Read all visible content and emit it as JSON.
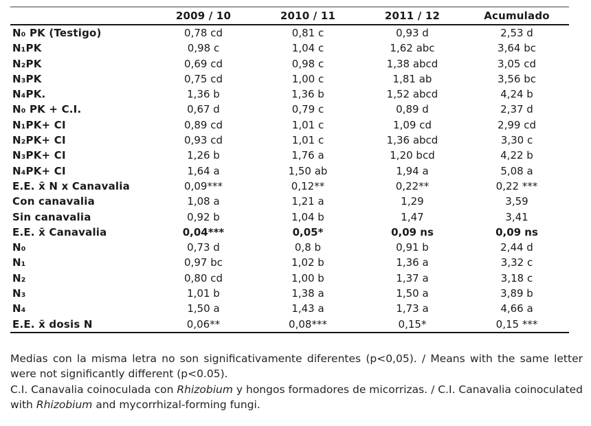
{
  "page": {
    "background": "#ffffff",
    "text_color": "#1a1a1a",
    "top_rule_color": "#9b9b9b",
    "rule_color": "#141414"
  },
  "table": {
    "columns": [
      "",
      "2009 / 10",
      "2010 / 11",
      "2011 / 12",
      "Acumulado"
    ],
    "rows": [
      {
        "label": "N₀ PK (Testigo)",
        "values": [
          "0,78 cd",
          "0,81 c",
          "0,93 d",
          "2,53 d"
        ],
        "bold_values": false
      },
      {
        "label": "N₁PK",
        "values": [
          "0,98 c",
          "1,04 c",
          "1,62 abc",
          "3,64 bc"
        ],
        "bold_values": false
      },
      {
        "label": "N₂PK",
        "values": [
          "0,69 cd",
          "0,98 c",
          "1,38 abcd",
          "3,05 cd"
        ],
        "bold_values": false
      },
      {
        "label": "N₃PK",
        "values": [
          "0,75 cd",
          "1,00 c",
          "1,81 ab",
          "3,56 bc"
        ],
        "bold_values": false
      },
      {
        "label": "N₄PK.",
        "values": [
          "1,36 b",
          "1,36 b",
          "1,52 abcd",
          "4,24 b"
        ],
        "bold_values": false
      },
      {
        "label": "N₀ PK + C.I.",
        "values": [
          "0,67 d",
          "0,79 c",
          "0,89 d",
          "2,37 d"
        ],
        "bold_values": false
      },
      {
        "label": "N₁PK+ CI",
        "values": [
          "0,89 cd",
          "1,01 c",
          "1,09 cd",
          "2,99 cd"
        ],
        "bold_values": false
      },
      {
        "label": "N₂PK+ CI",
        "values": [
          "0,93 cd",
          "1,01 c",
          "1,36 abcd",
          "3,30 c"
        ],
        "bold_values": false
      },
      {
        "label": "N₃PK+ CI",
        "values": [
          "1,26 b",
          "1,76 a",
          "1,20 bcd",
          "4,22 b"
        ],
        "bold_values": false
      },
      {
        "label": "N₄PK+ CI",
        "values": [
          "1,64 a",
          "1,50 ab",
          "1,94 a",
          "5,08 a"
        ],
        "bold_values": false
      },
      {
        "label": "E.E. x̄ N x Canavalia",
        "values": [
          "0,09***",
          "0,12**",
          "0,22**",
          "0,22 ***"
        ],
        "bold_values": false
      },
      {
        "label": "Con canavalia",
        "values": [
          "1,08 a",
          "1,21 a",
          "1,29",
          "3,59"
        ],
        "bold_values": false
      },
      {
        "label": "Sin canavalia",
        "values": [
          "0,92 b",
          "1,04 b",
          "1,47",
          "3,41"
        ],
        "bold_values": false
      },
      {
        "label": "E.E. x̄ Canavalia",
        "values": [
          "0,04***",
          "0,05*",
          "0,09 ns",
          "0,09 ns"
        ],
        "bold_values": true
      },
      {
        "label": "N₀",
        "values": [
          "0,73 d",
          "0,8 b",
          "0,91 b",
          "2,44 d"
        ],
        "bold_values": false
      },
      {
        "label": "N₁",
        "values": [
          "0,97 bc",
          "1,02 b",
          "1,36 a",
          "3,32 c"
        ],
        "bold_values": false
      },
      {
        "label": "N₂",
        "values": [
          "0,80 cd",
          "1,00 b",
          "1,37 a",
          "3,18 c"
        ],
        "bold_values": false
      },
      {
        "label": "N₃",
        "values": [
          "1,01 b",
          "1,38 a",
          "1,50 a",
          "3,89 b"
        ],
        "bold_values": false
      },
      {
        "label": "N₄",
        "values": [
          "1,50 a",
          "1,43 a",
          "1,73 a",
          "4,66 a"
        ],
        "bold_values": false
      },
      {
        "label": "E.E. x̄ dosis N",
        "values": [
          "0,06**",
          "0,08***",
          "0,15*",
          "0,15 ***"
        ],
        "bold_values": false
      }
    ]
  },
  "footnotes": [
    {
      "segments": [
        {
          "text": "Medias con la misma letra no son significativamente diferentes (p<0,05). / Means with the same letter were not significantly different (p<0.05).",
          "italic": false
        }
      ]
    },
    {
      "segments": [
        {
          "text": "C.I. Canavalia coinoculada con ",
          "italic": false
        },
        {
          "text": "Rhizobium",
          "italic": true
        },
        {
          "text": " y hongos formadores de micorrizas. / C.I. Canavalia coinoculated with ",
          "italic": false
        },
        {
          "text": "Rhizobium",
          "italic": true
        },
        {
          "text": " and mycorrhizal-forming fungi.",
          "italic": false
        }
      ]
    }
  ]
}
